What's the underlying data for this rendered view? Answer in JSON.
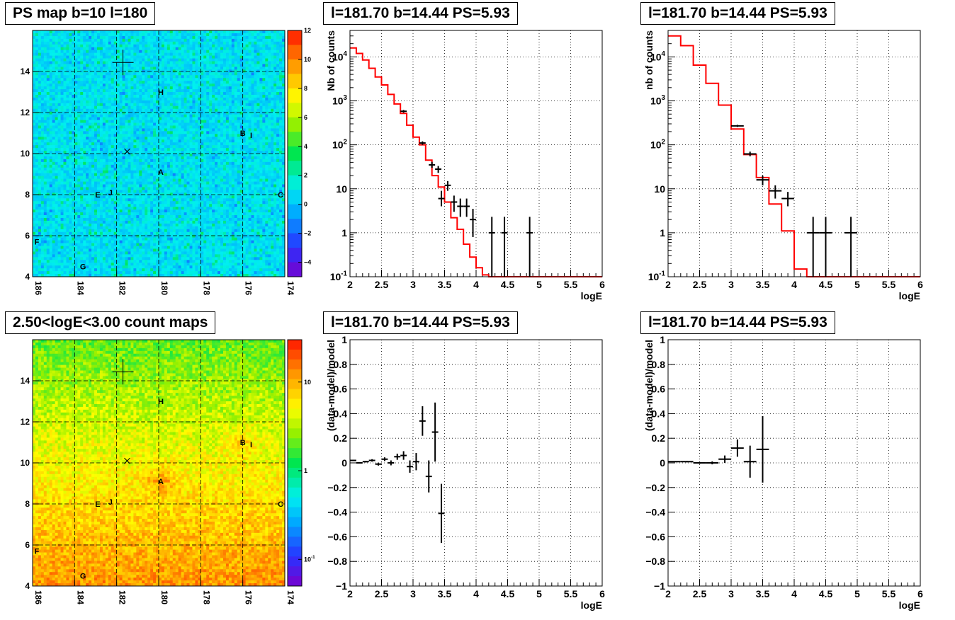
{
  "titles": {
    "ps_map": "PS map b=10 l=180",
    "count_map": "2.50<logE<3.00 count maps",
    "spec1": "l=181.70 b=14.44 PS=5.93",
    "spec2": "l=181.70 b=14.44 PS=5.93",
    "res1": "l=181.70 b=14.44 PS=5.93",
    "res2": "l=181.70 b=14.44 PS=5.93"
  },
  "colors": {
    "model_line": "#ff0000",
    "data_points": "#000000",
    "grid": "#000000"
  },
  "chart_data": [
    {
      "id": "ps_map",
      "type": "heatmap",
      "title": "PS map b=10 l=180",
      "xlim": [
        186,
        174
      ],
      "ylim": [
        4,
        16
      ],
      "x_ticks": [
        "186",
        "184",
        "182",
        "180",
        "178",
        "176",
        "174"
      ],
      "y_ticks": [
        "4",
        "6",
        "8",
        "10",
        "12",
        "14"
      ],
      "colorbar": {
        "range": [
          -5,
          12
        ],
        "ticks": [
          "12",
          "10",
          "8",
          "6",
          "4",
          "2",
          "0",
          "-2",
          "-4"
        ]
      },
      "sources": [
        {
          "label": "H",
          "l": 179.9,
          "b": 13.0
        },
        {
          "label": "B",
          "l": 176.0,
          "b": 11.0
        },
        {
          "label": "I",
          "l": 175.6,
          "b": 10.9
        },
        {
          "label": "A",
          "l": 179.9,
          "b": 9.1
        },
        {
          "label": "E",
          "l": 182.9,
          "b": 8.0
        },
        {
          "label": "J",
          "l": 182.3,
          "b": 8.1
        },
        {
          "label": "C",
          "l": 174.2,
          "b": 8.0
        },
        {
          "label": "F",
          "l": 185.8,
          "b": 5.7
        },
        {
          "label": "G",
          "l": 183.6,
          "b": 4.5
        }
      ],
      "markers": [
        {
          "type": "cross",
          "l": 181.7,
          "b": 14.44
        },
        {
          "type": "x",
          "l": 181.5,
          "b": 10.1
        }
      ]
    },
    {
      "id": "spec1",
      "type": "line",
      "title": "l=181.70 b=14.44 PS=5.93",
      "xlabel": "logE",
      "ylabel": "Nb of counts",
      "xlim": [
        2,
        6
      ],
      "ylim": [
        0.1,
        40000
      ],
      "yscale": "log",
      "x_ticks": [
        "2",
        "2.5",
        "3",
        "3.5",
        "4",
        "4.5",
        "5",
        "5.5",
        "6"
      ],
      "y_ticks": [
        "10^-1",
        "1",
        "10",
        "10^2",
        "10^3",
        "10^4"
      ],
      "model": {
        "edges": [
          2.0,
          2.1,
          2.2,
          2.3,
          2.4,
          2.5,
          2.6,
          2.7,
          2.8,
          2.9,
          3.0,
          3.1,
          3.2,
          3.3,
          3.4,
          3.5,
          3.6,
          3.7,
          3.8,
          3.9,
          4.0,
          4.1,
          4.2,
          6.0
        ],
        "values": [
          16000,
          12000,
          8500,
          5500,
          3500,
          2300,
          1400,
          850,
          520,
          280,
          150,
          100,
          45,
          20,
          11,
          5,
          2.2,
          1.2,
          0.55,
          0.28,
          0.16,
          0.11,
          0.1
        ]
      },
      "points": [
        {
          "x": 2.85,
          "xerr": 0.05,
          "y": 580,
          "ylo": 540,
          "yhi": 620
        },
        {
          "x": 3.15,
          "xerr": 0.05,
          "y": 110,
          "ylo": 100,
          "yhi": 120
        },
        {
          "x": 3.3,
          "xerr": 0.05,
          "y": 35,
          "ylo": 30,
          "yhi": 41
        },
        {
          "x": 3.4,
          "xerr": 0.05,
          "y": 28,
          "ylo": 23,
          "yhi": 33
        },
        {
          "x": 3.45,
          "xerr": 0.05,
          "y": 6,
          "ylo": 4,
          "yhi": 9
        },
        {
          "x": 3.55,
          "xerr": 0.05,
          "y": 12,
          "ylo": 9,
          "yhi": 15
        },
        {
          "x": 3.65,
          "xerr": 0.05,
          "y": 5,
          "ylo": 3,
          "yhi": 7
        },
        {
          "x": 3.75,
          "xerr": 0.05,
          "y": 4,
          "ylo": 2.3,
          "yhi": 6
        },
        {
          "x": 3.85,
          "xerr": 0.05,
          "y": 4,
          "ylo": 2.3,
          "yhi": 6
        },
        {
          "x": 3.95,
          "xerr": 0.05,
          "y": 2,
          "ylo": 0.8,
          "yhi": 3.5
        },
        {
          "x": 4.25,
          "xerr": 0.05,
          "y": 1,
          "ylo": 0.1,
          "yhi": 2.3
        },
        {
          "x": 4.45,
          "xerr": 0.05,
          "y": 1,
          "ylo": 0.1,
          "yhi": 2.3
        },
        {
          "x": 4.85,
          "xerr": 0.05,
          "y": 1,
          "ylo": 0.1,
          "yhi": 2.3
        }
      ]
    },
    {
      "id": "spec2",
      "type": "line",
      "title": "l=181.70 b=14.44 PS=5.93",
      "xlabel": "logE",
      "ylabel": "nb of counts",
      "xlim": [
        2,
        6
      ],
      "ylim": [
        0.1,
        40000
      ],
      "yscale": "log",
      "x_ticks": [
        "2",
        "2.5",
        "3",
        "3.5",
        "4",
        "4.5",
        "5",
        "5.5",
        "6"
      ],
      "y_ticks": [
        "10^-1",
        "1",
        "10",
        "10^2",
        "10^3",
        "10^4"
      ],
      "model": {
        "edges": [
          2.0,
          2.2,
          2.4,
          2.6,
          2.8,
          3.0,
          3.2,
          3.4,
          3.6,
          3.8,
          4.0,
          4.2,
          6.0
        ],
        "values": [
          30000,
          18000,
          6500,
          2500,
          800,
          230,
          60,
          18,
          4.5,
          1.1,
          0.15,
          0.1
        ]
      },
      "points": [
        {
          "x": 3.1,
          "xerr": 0.1,
          "y": 270,
          "ylo": 255,
          "yhi": 285
        },
        {
          "x": 3.3,
          "xerr": 0.1,
          "y": 62,
          "ylo": 55,
          "yhi": 70
        },
        {
          "x": 3.5,
          "xerr": 0.1,
          "y": 16,
          "ylo": 12,
          "yhi": 20
        },
        {
          "x": 3.7,
          "xerr": 0.1,
          "y": 9,
          "ylo": 6,
          "yhi": 12
        },
        {
          "x": 3.9,
          "xerr": 0.1,
          "y": 6,
          "ylo": 4,
          "yhi": 8.5
        },
        {
          "x": 4.3,
          "xerr": 0.1,
          "y": 1,
          "ylo": 0.1,
          "yhi": 2.3
        },
        {
          "x": 4.5,
          "xerr": 0.1,
          "y": 1,
          "ylo": 0.1,
          "yhi": 2.3
        },
        {
          "x": 4.9,
          "xerr": 0.1,
          "y": 1,
          "ylo": 0.1,
          "yhi": 2.3
        }
      ]
    },
    {
      "id": "count_map",
      "type": "heatmap",
      "title": "2.50<logE<3.00 count maps",
      "xlim": [
        186,
        174
      ],
      "ylim": [
        4,
        16
      ],
      "x_ticks": [
        "186",
        "184",
        "182",
        "180",
        "178",
        "176",
        "174"
      ],
      "y_ticks": [
        "4",
        "6",
        "8",
        "10",
        "12",
        "14"
      ],
      "colorbar": {
        "scale": "log",
        "range": [
          0.05,
          30
        ],
        "ticks": [
          "10",
          "1",
          "10^-1"
        ]
      },
      "sources": [
        {
          "label": "H",
          "l": 179.9,
          "b": 13.0
        },
        {
          "label": "B",
          "l": 176.0,
          "b": 11.0
        },
        {
          "label": "I",
          "l": 175.6,
          "b": 10.9
        },
        {
          "label": "A",
          "l": 179.9,
          "b": 9.1
        },
        {
          "label": "E",
          "l": 182.9,
          "b": 8.0
        },
        {
          "label": "J",
          "l": 182.3,
          "b": 8.1
        },
        {
          "label": "C",
          "l": 174.2,
          "b": 8.0
        },
        {
          "label": "F",
          "l": 185.8,
          "b": 5.7
        },
        {
          "label": "G",
          "l": 183.6,
          "b": 4.5
        }
      ],
      "markers": [
        {
          "type": "cross",
          "l": 181.7,
          "b": 14.44
        },
        {
          "type": "x",
          "l": 181.5,
          "b": 10.1
        }
      ]
    },
    {
      "id": "res1",
      "type": "scatter",
      "title": "l=181.70 b=14.44 PS=5.93",
      "xlabel": "logE",
      "ylabel": "(data-model)/model",
      "xlim": [
        2,
        6
      ],
      "ylim": [
        -1,
        1
      ],
      "x_ticks": [
        "2",
        "2.5",
        "3",
        "3.5",
        "4",
        "4.5",
        "5",
        "5.5",
        "6"
      ],
      "y_ticks": [
        "-1",
        "-0.8",
        "-0.6",
        "-0.4",
        "-0.2",
        "0",
        "0.2",
        "0.4",
        "0.6",
        "0.8",
        "1"
      ],
      "points": [
        {
          "x": 2.05,
          "xerr": 0.05,
          "y": 0.02,
          "yerr": 0.005
        },
        {
          "x": 2.15,
          "xerr": 0.05,
          "y": 0.0,
          "yerr": 0.005
        },
        {
          "x": 2.25,
          "xerr": 0.05,
          "y": 0.01,
          "yerr": 0.007
        },
        {
          "x": 2.35,
          "xerr": 0.05,
          "y": 0.02,
          "yerr": 0.01
        },
        {
          "x": 2.45,
          "xerr": 0.05,
          "y": -0.01,
          "yerr": 0.012
        },
        {
          "x": 2.55,
          "xerr": 0.05,
          "y": 0.03,
          "yerr": 0.015
        },
        {
          "x": 2.65,
          "xerr": 0.05,
          "y": 0.0,
          "yerr": 0.02
        },
        {
          "x": 2.75,
          "xerr": 0.05,
          "y": 0.05,
          "yerr": 0.025
        },
        {
          "x": 2.85,
          "xerr": 0.05,
          "y": 0.06,
          "yerr": 0.035
        },
        {
          "x": 2.95,
          "xerr": 0.05,
          "y": -0.03,
          "yerr": 0.05
        },
        {
          "x": 3.05,
          "xerr": 0.05,
          "y": 0.01,
          "yerr": 0.07
        },
        {
          "x": 3.15,
          "xerr": 0.05,
          "y": 0.34,
          "yerr": 0.12
        },
        {
          "x": 3.25,
          "xerr": 0.05,
          "y": -0.11,
          "yerr": 0.13
        },
        {
          "x": 3.35,
          "xerr": 0.05,
          "y": 0.25,
          "yerr": 0.24
        },
        {
          "x": 3.45,
          "xerr": 0.05,
          "y": -0.41,
          "yerr": 0.24
        }
      ]
    },
    {
      "id": "res2",
      "type": "scatter",
      "title": "l=181.70 b=14.44 PS=5.93",
      "xlabel": "logE",
      "ylabel": "(data-model)/model",
      "xlim": [
        2,
        6
      ],
      "ylim": [
        -1,
        1
      ],
      "x_ticks": [
        "2",
        "2.5",
        "3",
        "3.5",
        "4",
        "4.5",
        "5",
        "5.5",
        "6"
      ],
      "y_ticks": [
        "-1",
        "-0.8",
        "-0.6",
        "-0.4",
        "-0.2",
        "0",
        "0.2",
        "0.4",
        "0.6",
        "0.8",
        "1"
      ],
      "points": [
        {
          "x": 2.1,
          "xerr": 0.1,
          "y": 0.01,
          "yerr": 0.004
        },
        {
          "x": 2.3,
          "xerr": 0.1,
          "y": 0.01,
          "yerr": 0.006
        },
        {
          "x": 2.5,
          "xerr": 0.1,
          "y": 0.0,
          "yerr": 0.008
        },
        {
          "x": 2.7,
          "xerr": 0.1,
          "y": 0.0,
          "yerr": 0.012
        },
        {
          "x": 2.9,
          "xerr": 0.1,
          "y": 0.03,
          "yerr": 0.03
        },
        {
          "x": 3.1,
          "xerr": 0.1,
          "y": 0.12,
          "yerr": 0.07
        },
        {
          "x": 3.3,
          "xerr": 0.1,
          "y": 0.01,
          "yerr": 0.13
        },
        {
          "x": 3.5,
          "xerr": 0.1,
          "y": 0.11,
          "yerr": 0.27
        }
      ]
    }
  ]
}
